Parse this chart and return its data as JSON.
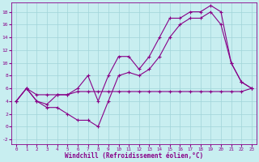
{
  "xlabel": "Windchill (Refroidissement éolien,°C)",
  "bg_color": "#c8eef0",
  "grid_color": "#a0d4d8",
  "line_color": "#880088",
  "line1_x": [
    0,
    1,
    2,
    3,
    4,
    5,
    6,
    7,
    8,
    9,
    10,
    11,
    12,
    13,
    14,
    15,
    16,
    17,
    18,
    19,
    20,
    21,
    22,
    23
  ],
  "line1_y": [
    4,
    6,
    4,
    3.5,
    5,
    5,
    6,
    8,
    4,
    8,
    11,
    11,
    9,
    11,
    14,
    17,
    17,
    18,
    18,
    19,
    18,
    10,
    7,
    6
  ],
  "line2_x": [
    0,
    1,
    2,
    3,
    4,
    5,
    6,
    7,
    8,
    9,
    10,
    11,
    12,
    13,
    14,
    15,
    16,
    17,
    18,
    19,
    20,
    21,
    22,
    23
  ],
  "line2_y": [
    4,
    6,
    4,
    3,
    3,
    2,
    1,
    1,
    0,
    4,
    8,
    8.5,
    8,
    9,
    11,
    14,
    16,
    17,
    17,
    18,
    16,
    10,
    7,
    6
  ],
  "line3_x": [
    0,
    1,
    2,
    3,
    4,
    5,
    6,
    7,
    8,
    9,
    10,
    11,
    12,
    13,
    14,
    15,
    16,
    17,
    18,
    19,
    20,
    21,
    22,
    23
  ],
  "line3_y": [
    4,
    6,
    5,
    5,
    5,
    5,
    5.5,
    5.5,
    5.5,
    5.5,
    5.5,
    5.5,
    5.5,
    5.5,
    5.5,
    5.5,
    5.5,
    5.5,
    5.5,
    5.5,
    5.5,
    5.5,
    5.5,
    6
  ],
  "xlim": [
    -0.5,
    23.5
  ],
  "ylim": [
    -2.8,
    19.5
  ],
  "xticks": [
    0,
    1,
    2,
    3,
    4,
    5,
    6,
    7,
    8,
    9,
    10,
    11,
    12,
    13,
    14,
    15,
    16,
    17,
    18,
    19,
    20,
    21,
    22,
    23
  ],
  "yticks": [
    -2,
    0,
    2,
    4,
    6,
    8,
    10,
    12,
    14,
    16,
    18
  ]
}
